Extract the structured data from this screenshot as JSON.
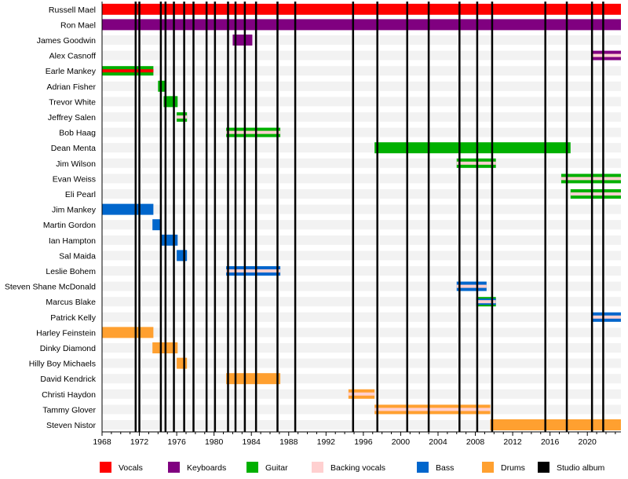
{
  "chart_data": {
    "type": "timeline",
    "title": "",
    "xlabel": "",
    "ylabel": "",
    "xlim": [
      1968,
      2023.6
    ],
    "x_ticks": [
      1968,
      1972,
      1976,
      1980,
      1984,
      1988,
      1992,
      1996,
      2000,
      2004,
      2008,
      2012,
      2016,
      2020
    ],
    "grid": false,
    "legend_placement": "bottom",
    "roles": {
      "vocals": {
        "label": "Vocals",
        "color": "#ff0000"
      },
      "keyboards": {
        "label": "Keyboards",
        "color": "#800080"
      },
      "guitar": {
        "label": "Guitar",
        "color": "#00b000"
      },
      "backing_vocals": {
        "label": "Backing vocals",
        "color": "#ffd0d0"
      },
      "bass": {
        "label": "Bass",
        "color": "#0066cc"
      },
      "drums": {
        "label": "Drums",
        "color": "#ffa030"
      },
      "studio_album": {
        "label": "Studio album",
        "color": "#000000"
      }
    },
    "legend_order": [
      "vocals",
      "keyboards",
      "guitar",
      "backing_vocals",
      "bass",
      "drums",
      "studio_album"
    ],
    "members": [
      {
        "name": "Russell Mael",
        "start": 1968,
        "end": 2023.6,
        "roles": [
          "vocals"
        ]
      },
      {
        "name": "Ron Mael",
        "start": 1968,
        "end": 2023.6,
        "roles": [
          "keyboards"
        ]
      },
      {
        "name": "James Goodwin",
        "start": 1982.0,
        "end": 1984.1,
        "roles": [
          "keyboards"
        ]
      },
      {
        "name": "Alex Casnoff",
        "start": 2020.5,
        "end": 2023.6,
        "roles": [
          "keyboards",
          "backing_vocals"
        ]
      },
      {
        "name": "Earle Mankey",
        "start": 1968,
        "end": 1973.5,
        "roles": [
          "guitar",
          "vocals"
        ]
      },
      {
        "name": "Adrian Fisher",
        "start": 1974.0,
        "end": 1974.8,
        "roles": [
          "guitar"
        ]
      },
      {
        "name": "Trevor White",
        "start": 1974.6,
        "end": 1976.1,
        "roles": [
          "guitar"
        ]
      },
      {
        "name": "Jeffrey Salen",
        "start": 1976.0,
        "end": 1977.1,
        "roles": [
          "guitar",
          "backing_vocals"
        ]
      },
      {
        "name": "Bob Haag",
        "start": 1981.3,
        "end": 1987.1,
        "roles": [
          "guitar",
          "backing_vocals"
        ]
      },
      {
        "name": "Dean Menta",
        "start": 1997.2,
        "end": 2018.2,
        "roles": [
          "guitar"
        ]
      },
      {
        "name": "Jim Wilson",
        "start": 2006.0,
        "end": 2010.2,
        "roles": [
          "guitar",
          "backing_vocals"
        ]
      },
      {
        "name": "Evan Weiss",
        "start": 2017.2,
        "end": 2023.6,
        "roles": [
          "guitar",
          "backing_vocals"
        ]
      },
      {
        "name": "Eli Pearl",
        "start": 2018.2,
        "end": 2023.6,
        "roles": [
          "guitar",
          "backing_vocals"
        ]
      },
      {
        "name": "Jim Mankey",
        "start": 1968,
        "end": 1973.5,
        "roles": [
          "bass"
        ]
      },
      {
        "name": "Martin Gordon",
        "start": 1973.4,
        "end": 1974.3,
        "roles": [
          "bass"
        ]
      },
      {
        "name": "Ian Hampton",
        "start": 1974.3,
        "end": 1976.1,
        "roles": [
          "bass"
        ]
      },
      {
        "name": "Sal Maida",
        "start": 1976.0,
        "end": 1977.1,
        "roles": [
          "bass"
        ]
      },
      {
        "name": "Leslie Bohem",
        "start": 1981.3,
        "end": 1987.1,
        "roles": [
          "bass",
          "backing_vocals"
        ]
      },
      {
        "name": "Steven Shane McDonald",
        "start": 2006.0,
        "end": 2009.2,
        "roles": [
          "bass",
          "backing_vocals"
        ]
      },
      {
        "name": "Marcus Blake",
        "start": 2008.1,
        "end": 2010.2,
        "roles": [
          "guitar",
          "bass",
          "backing_vocals"
        ]
      },
      {
        "name": "Patrick Kelly",
        "start": 2020.5,
        "end": 2023.6,
        "roles": [
          "bass",
          "backing_vocals"
        ]
      },
      {
        "name": "Harley Feinstein",
        "start": 1968,
        "end": 1973.5,
        "roles": [
          "drums"
        ]
      },
      {
        "name": "Dinky Diamond",
        "start": 1973.4,
        "end": 1976.1,
        "roles": [
          "drums"
        ]
      },
      {
        "name": "Hilly Boy Michaels",
        "start": 1976.0,
        "end": 1977.1,
        "roles": [
          "drums"
        ]
      },
      {
        "name": "David Kendrick",
        "start": 1981.3,
        "end": 1987.1,
        "roles": [
          "drums"
        ]
      },
      {
        "name": "Christi Haydon",
        "start": 1994.4,
        "end": 1997.2,
        "roles": [
          "drums",
          "backing_vocals"
        ]
      },
      {
        "name": "Tammy Glover",
        "start": 1997.2,
        "end": 2009.6,
        "roles": [
          "drums",
          "backing_vocals"
        ]
      },
      {
        "name": "Steven Nistor",
        "start": 2009.6,
        "end": 2023.6,
        "roles": [
          "drums"
        ]
      }
    ],
    "studio_albums": [
      1971.6,
      1972.0,
      1974.3,
      1974.8,
      1975.7,
      1976.8,
      1977.8,
      1979.2,
      1980.1,
      1981.5,
      1982.3,
      1983.3,
      1984.5,
      1986.8,
      1988.7,
      1994.9,
      1997.5,
      2000.7,
      2003.0,
      2006.3,
      2008.2,
      2009.8,
      2015.5,
      2017.8,
      2020.5,
      2021.7
    ]
  }
}
